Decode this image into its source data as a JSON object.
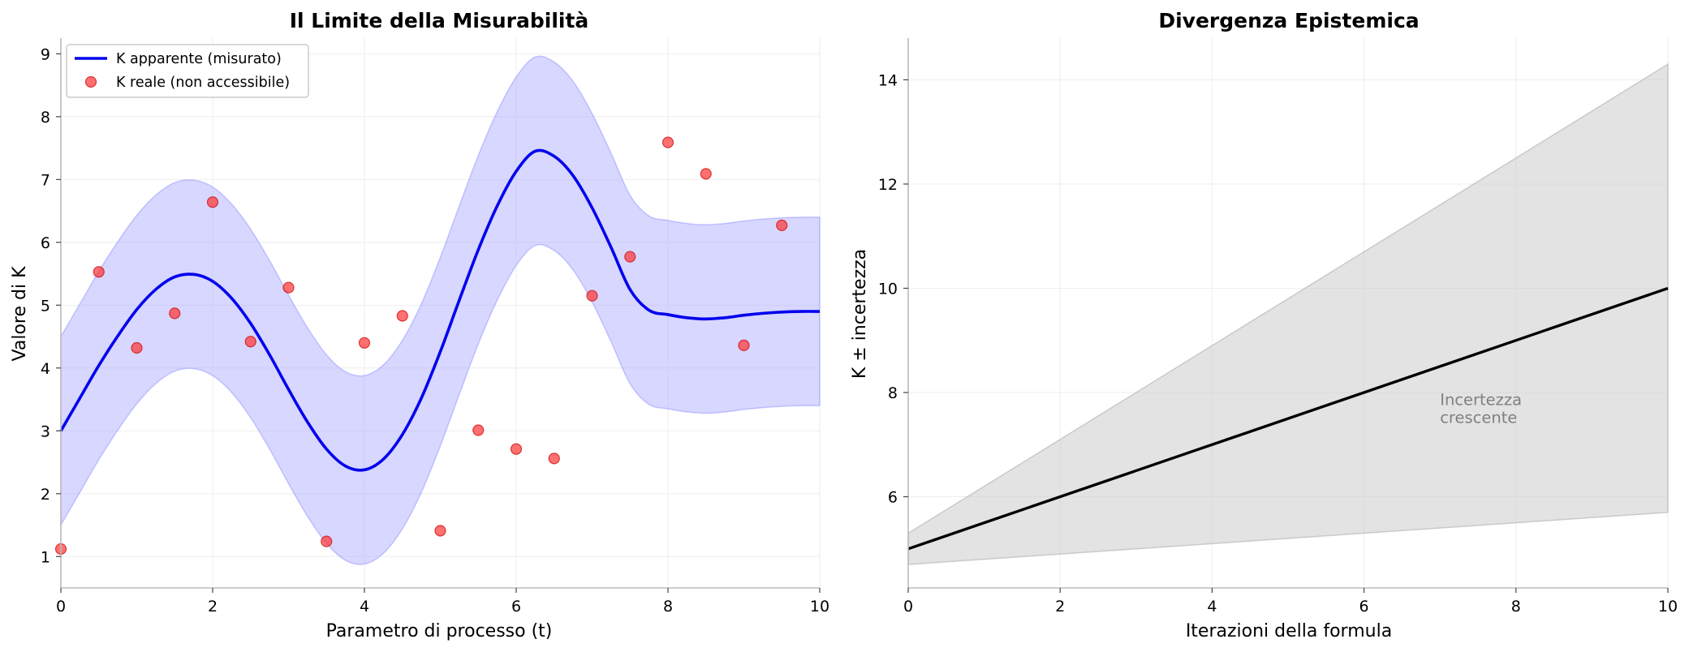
{
  "chart_data": [
    {
      "type": "line",
      "title": "Il Limite della Misurabilità",
      "xlabel": "Parametro di processo (t)",
      "ylabel": "Valore di K",
      "xlim": [
        0,
        10
      ],
      "ylim": [
        0.5,
        9.25
      ],
      "xticks": [
        0,
        2,
        4,
        6,
        8,
        10
      ],
      "yticks": [
        1,
        2,
        3,
        4,
        5,
        6,
        7,
        8,
        9
      ],
      "grid": true,
      "legend_position": "upper-left",
      "series": [
        {
          "name": "K apparente (misurato)",
          "kind": "line",
          "color": "#0000ee",
          "x": [
            0,
            0.25,
            0.5,
            0.75,
            1.0,
            1.25,
            1.5,
            1.75,
            2.0,
            2.25,
            2.5,
            2.75,
            3.0,
            3.25,
            3.5,
            3.75,
            4.0,
            4.25,
            4.5,
            4.75,
            5.0,
            5.25,
            5.5,
            5.75,
            6.0,
            6.25,
            6.5,
            6.75,
            7.0,
            7.25,
            7.5,
            7.75,
            8.0,
            8.25,
            8.5,
            8.75,
            9.0,
            9.25,
            9.5,
            9.75,
            10.0
          ],
          "y": [
            3.0,
            3.52,
            4.04,
            4.51,
            4.93,
            5.25,
            5.45,
            5.49,
            5.38,
            5.11,
            4.71,
            4.21,
            3.66,
            3.14,
            2.71,
            2.44,
            2.38,
            2.55,
            2.94,
            3.52,
            4.26,
            5.08,
            5.88,
            6.58,
            7.13,
            7.45,
            7.37,
            7.06,
            6.55,
            5.92,
            5.25,
            4.92,
            4.85,
            4.8,
            4.78,
            4.8,
            4.84,
            4.87,
            4.89,
            4.9,
            4.9
          ],
          "band_halfwidth": 1.5,
          "band_color": "#a0a0ff"
        },
        {
          "name": "K reale (non accessibile)",
          "kind": "scatter",
          "color": "#ff3333",
          "x": [
            0.0,
            0.5,
            1.0,
            1.5,
            2.0,
            2.5,
            3.0,
            3.5,
            4.0,
            4.5,
            5.0,
            5.5,
            6.0,
            6.5,
            7.0,
            7.5,
            8.0,
            8.5,
            9.0,
            9.5
          ],
          "y": [
            1.12,
            5.53,
            4.32,
            4.87,
            6.64,
            4.42,
            5.28,
            1.24,
            4.4,
            4.83,
            1.41,
            3.01,
            2.71,
            2.56,
            5.15,
            5.77,
            7.59,
            7.09,
            4.36,
            6.27
          ]
        }
      ]
    },
    {
      "type": "area",
      "title": "Divergenza Epistemica",
      "xlabel": "Iterazioni della formula",
      "ylabel": "K ± incertezza",
      "xlim": [
        0,
        10
      ],
      "ylim": [
        4.25,
        14.8
      ],
      "xticks": [
        0,
        2,
        4,
        6,
        8,
        10
      ],
      "yticks": [
        6,
        8,
        10,
        12,
        14
      ],
      "grid": true,
      "annotation": {
        "text_line1": "Incertezza",
        "text_line2": "crescente",
        "x": 7.0,
        "y": 7.7
      },
      "series": [
        {
          "kind": "line",
          "color": "#000000",
          "x": [
            0,
            10
          ],
          "y": [
            5.0,
            10.0
          ]
        },
        {
          "kind": "band",
          "color": "#c8c8c8",
          "x": [
            0,
            10
          ],
          "lower": [
            4.7,
            5.7
          ],
          "upper": [
            5.3,
            14.3
          ]
        }
      ]
    }
  ]
}
